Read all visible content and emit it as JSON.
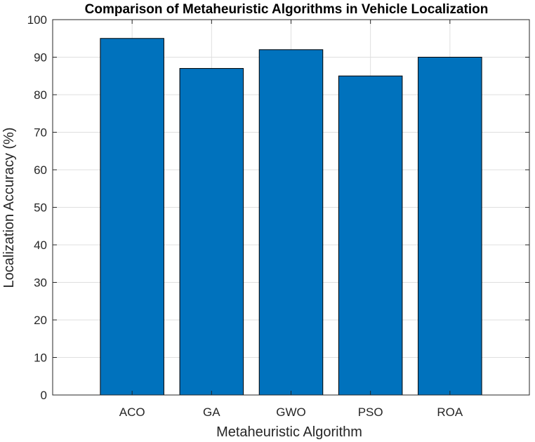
{
  "chart_data": {
    "type": "bar",
    "title": "Comparison of Metaheuristic Algorithms in Vehicle Localization",
    "xlabel": "Metaheuristic Algorithm",
    "ylabel": "Localization Accuracy (%)",
    "categories": [
      "ACO",
      "GA",
      "GWO",
      "PSO",
      "ROA"
    ],
    "values": [
      95,
      87,
      92,
      85,
      90
    ],
    "ylim": [
      0,
      100
    ],
    "yticks": [
      0,
      10,
      20,
      30,
      40,
      50,
      60,
      70,
      80,
      90,
      100
    ],
    "grid": true,
    "bar_color": "#0072BD",
    "legend": "none"
  }
}
